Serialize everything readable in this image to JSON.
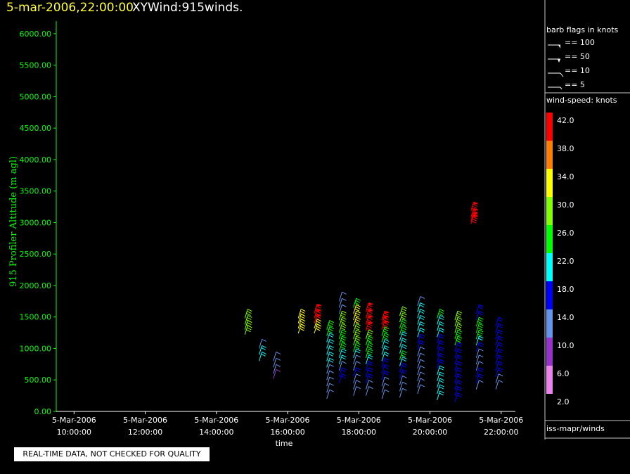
{
  "header": {
    "date_time": "5-mar-2006,22:00:00",
    "plot_name": "XYWind:915winds."
  },
  "warning_text": "REAL-TIME DATA, NOT CHECKED FOR QUALITY",
  "colors": {
    "background": "#000000",
    "y_axis": "#00ff00",
    "x_axis": "#ffffff",
    "date_title": "#ffff33"
  },
  "legend": {
    "barb_title": "barb flags in knots",
    "barb_items": [
      "== 100",
      "== 50",
      "== 10",
      "== 5"
    ],
    "speed_title": "wind-speed: knots",
    "speed_labels": [
      "42.0",
      "38.0",
      "34.0",
      "30.0",
      "26.0",
      "22.0",
      "18.0",
      "14.0",
      "10.0",
      "6.0",
      "2.0"
    ],
    "speed_colors": [
      "#ff0000",
      "#ff7f00",
      "#ffff00",
      "#80ff00",
      "#00ff00",
      "#00ffff",
      "#0000ff",
      "#6495ed",
      "#9932cc",
      "#ee82ee"
    ],
    "source": "iss-mapr/winds"
  },
  "chart_data": {
    "type": "wind-barb",
    "ylabel": "915 Profiler Altitude (m agl)",
    "xlabel": "time",
    "ylim": [
      0,
      6200
    ],
    "xlim_hours": [
      9.5,
      22.4
    ],
    "yticks": [
      "0.00",
      "500.00",
      "1000.00",
      "1500.00",
      "2000.00",
      "2500.00",
      "3000.00",
      "3500.00",
      "4000.00",
      "4500.00",
      "5000.00",
      "5500.00",
      "6000.00"
    ],
    "xticks": [
      {
        "hour": 10,
        "date": "5-Mar-2006",
        "time": "10:00:00"
      },
      {
        "hour": 12,
        "date": "5-Mar-2006",
        "time": "12:00:00"
      },
      {
        "hour": 14,
        "date": "5-Mar-2006",
        "time": "14:00:00"
      },
      {
        "hour": 16,
        "date": "5-Mar-2006",
        "time": "16:00:00"
      },
      {
        "hour": 18,
        "date": "5-Mar-2006",
        "time": "18:00:00"
      },
      {
        "hour": 20,
        "date": "5-Mar-2006",
        "time": "20:00:00"
      },
      {
        "hour": 22,
        "date": "5-Mar-2006",
        "time": "22:00:00"
      }
    ],
    "profiles": [
      {
        "hour": 14.8,
        "winds": [
          [
            1480,
            30
          ],
          [
            1380,
            30
          ],
          [
            1300,
            30
          ],
          [
            1220,
            30
          ]
        ]
      },
      {
        "hour": 15.2,
        "winds": [
          [
            1000,
            14
          ],
          [
            900,
            22
          ],
          [
            800,
            22
          ]
        ]
      },
      {
        "hour": 15.6,
        "winds": [
          [
            800,
            14
          ],
          [
            700,
            14
          ],
          [
            600,
            14
          ],
          [
            520,
            10
          ]
        ]
      },
      {
        "hour": 16.3,
        "winds": [
          [
            1480,
            34
          ],
          [
            1400,
            34
          ],
          [
            1320,
            34
          ],
          [
            1240,
            34
          ]
        ]
      },
      {
        "hour": 16.75,
        "winds": [
          [
            1560,
            42
          ],
          [
            1480,
            42
          ],
          [
            1400,
            42
          ],
          [
            1320,
            34
          ],
          [
            1240,
            34
          ]
        ]
      },
      {
        "hour": 17.1,
        "winds": [
          [
            1300,
            26
          ],
          [
            1200,
            26
          ],
          [
            1100,
            22
          ],
          [
            1000,
            22
          ],
          [
            900,
            22
          ],
          [
            800,
            22
          ],
          [
            700,
            22
          ],
          [
            600,
            14
          ],
          [
            500,
            14
          ],
          [
            400,
            14
          ],
          [
            300,
            14
          ],
          [
            200,
            14
          ]
        ]
      },
      {
        "hour": 17.45,
        "winds": [
          [
            1750,
            14
          ],
          [
            1650,
            14
          ],
          [
            1550,
            14
          ],
          [
            1450,
            30
          ],
          [
            1350,
            30
          ],
          [
            1250,
            30
          ],
          [
            1150,
            26
          ],
          [
            1050,
            26
          ],
          [
            950,
            26
          ],
          [
            850,
            22
          ],
          [
            750,
            22
          ],
          [
            650,
            14
          ],
          [
            550,
            18
          ],
          [
            450,
            18
          ]
        ]
      },
      {
        "hour": 17.85,
        "winds": [
          [
            1650,
            26
          ],
          [
            1550,
            34
          ],
          [
            1450,
            34
          ],
          [
            1350,
            34
          ],
          [
            1250,
            30
          ],
          [
            1150,
            30
          ],
          [
            1050,
            30
          ],
          [
            950,
            26
          ],
          [
            850,
            22
          ],
          [
            750,
            14
          ],
          [
            650,
            14
          ],
          [
            550,
            18
          ],
          [
            450,
            14
          ],
          [
            350,
            14
          ],
          [
            250,
            14
          ]
        ]
      },
      {
        "hour": 18.2,
        "winds": [
          [
            1580,
            42
          ],
          [
            1480,
            42
          ],
          [
            1380,
            42
          ],
          [
            1280,
            42
          ],
          [
            1150,
            30
          ],
          [
            1050,
            26
          ],
          [
            950,
            26
          ],
          [
            850,
            26
          ],
          [
            750,
            22
          ],
          [
            650,
            18
          ],
          [
            550,
            18
          ],
          [
            450,
            18
          ],
          [
            350,
            14
          ],
          [
            250,
            14
          ]
        ]
      },
      {
        "hour": 18.65,
        "winds": [
          [
            1450,
            42
          ],
          [
            1380,
            42
          ],
          [
            1300,
            42
          ],
          [
            1200,
            26
          ],
          [
            1100,
            26
          ],
          [
            1000,
            22
          ],
          [
            900,
            22
          ],
          [
            800,
            22
          ],
          [
            700,
            18
          ],
          [
            600,
            18
          ],
          [
            500,
            18
          ],
          [
            400,
            14
          ],
          [
            300,
            14
          ],
          [
            200,
            14
          ]
        ]
      },
      {
        "hour": 19.15,
        "winds": [
          [
            1520,
            30
          ],
          [
            1420,
            30
          ],
          [
            1320,
            26
          ],
          [
            1220,
            26
          ],
          [
            1120,
            22
          ],
          [
            1020,
            22
          ],
          [
            920,
            22
          ],
          [
            820,
            26
          ],
          [
            720,
            22
          ],
          [
            620,
            18
          ],
          [
            520,
            18
          ],
          [
            420,
            14
          ],
          [
            320,
            14
          ],
          [
            220,
            14
          ]
        ]
      },
      {
        "hour": 19.65,
        "winds": [
          [
            1680,
            14
          ],
          [
            1580,
            22
          ],
          [
            1480,
            22
          ],
          [
            1380,
            22
          ],
          [
            1280,
            22
          ],
          [
            1180,
            22
          ],
          [
            1080,
            18
          ],
          [
            980,
            18
          ],
          [
            880,
            14
          ],
          [
            780,
            14
          ],
          [
            680,
            14
          ],
          [
            580,
            14
          ],
          [
            480,
            14
          ],
          [
            380,
            14
          ],
          [
            280,
            14
          ]
        ]
      },
      {
        "hour": 20.2,
        "winds": [
          [
            1480,
            26
          ],
          [
            1380,
            22
          ],
          [
            1280,
            22
          ],
          [
            1180,
            22
          ],
          [
            1080,
            18
          ],
          [
            980,
            18
          ],
          [
            880,
            18
          ],
          [
            780,
            18
          ],
          [
            680,
            18
          ],
          [
            580,
            22
          ],
          [
            480,
            22
          ],
          [
            380,
            22
          ],
          [
            280,
            22
          ],
          [
            180,
            22
          ]
        ]
      },
      {
        "hour": 20.7,
        "winds": [
          [
            1450,
            30
          ],
          [
            1350,
            30
          ],
          [
            1250,
            30
          ],
          [
            1150,
            26
          ],
          [
            1050,
            26
          ],
          [
            950,
            18
          ],
          [
            850,
            18
          ],
          [
            750,
            18
          ],
          [
            650,
            18
          ],
          [
            550,
            18
          ],
          [
            450,
            18
          ],
          [
            350,
            18
          ],
          [
            250,
            18
          ],
          [
            150,
            18
          ]
        ]
      },
      {
        "hour": 21.15,
        "winds": [
          [
            3180,
            42
          ],
          [
            3080,
            42
          ],
          [
            3020,
            42
          ],
          [
            2980,
            42
          ]
        ]
      },
      {
        "hour": 21.3,
        "winds": [
          [
            1550,
            18
          ],
          [
            1450,
            18
          ],
          [
            1350,
            26
          ],
          [
            1250,
            26
          ],
          [
            1150,
            26
          ],
          [
            1050,
            22
          ],
          [
            950,
            18
          ],
          [
            850,
            14
          ],
          [
            750,
            14
          ],
          [
            650,
            14
          ],
          [
            550,
            18
          ],
          [
            450,
            18
          ],
          [
            350,
            14
          ]
        ]
      },
      {
        "hour": 21.85,
        "winds": [
          [
            1350,
            18
          ],
          [
            1250,
            18
          ],
          [
            1150,
            18
          ],
          [
            1050,
            18
          ],
          [
            950,
            18
          ],
          [
            850,
            18
          ],
          [
            750,
            18
          ],
          [
            650,
            18
          ],
          [
            550,
            18
          ],
          [
            450,
            14
          ],
          [
            350,
            14
          ]
        ]
      }
    ]
  }
}
